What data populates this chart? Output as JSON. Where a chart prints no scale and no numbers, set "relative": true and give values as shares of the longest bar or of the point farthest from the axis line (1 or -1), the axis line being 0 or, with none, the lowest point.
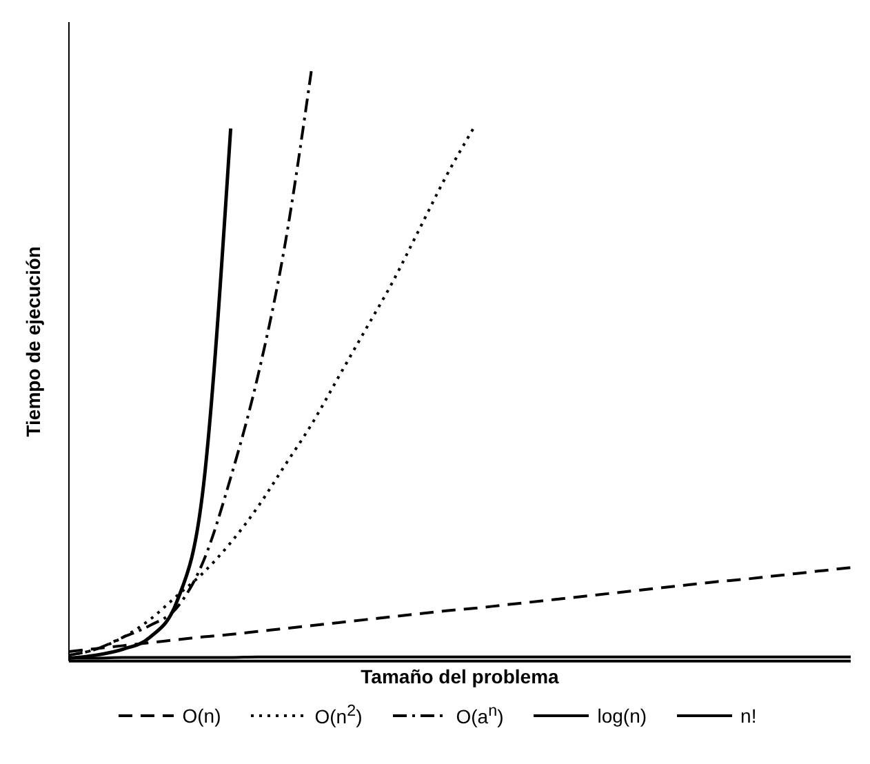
{
  "chart_data": {
    "type": "line",
    "relative": true,
    "xlabel": "Tamaño del problema",
    "ylabel": "Tiempo de ejecución",
    "grid": false,
    "legend": "bottom",
    "marker": "none",
    "categories": [
      null,
      null,
      null,
      null,
      null,
      null,
      null,
      null,
      null,
      null,
      null,
      null,
      null,
      null,
      null,
      null,
      null,
      null,
      null,
      null,
      null,
      null,
      null,
      null,
      null,
      null,
      null,
      null,
      null,
      null
    ],
    "series": [
      {
        "name": "O(n)",
        "color": "#000000",
        "line_style": "dashed",
        "values": [
          0.016,
          0.021,
          0.026,
          0.031,
          0.036,
          0.041,
          0.045,
          0.05,
          0.055,
          0.06,
          0.065,
          0.07,
          0.075,
          0.08,
          0.085,
          0.089,
          0.094,
          0.099,
          0.104,
          0.109,
          0.114,
          0.119,
          0.124,
          0.129,
          0.134,
          0.138,
          0.143,
          0.148,
          0.153,
          0.158
        ]
      },
      {
        "name": "O(n$^{2}$)",
        "color": "#000000",
        "line_style": "dotted",
        "values": [
          0.01,
          0.02,
          0.04,
          0.07,
          0.11,
          0.15,
          0.2,
          0.26,
          0.33,
          0.4,
          0.48,
          0.56,
          0.64,
          0.73,
          0.82,
          0.9,
          null,
          null,
          null,
          null,
          null,
          null,
          null,
          null,
          null,
          null,
          null,
          null,
          null,
          null
        ]
      },
      {
        "name": "O(a$^{n}$)",
        "color": "#000000",
        "line_style": "dashdot",
        "values": [
          0.01,
          0.02,
          0.04,
          0.06,
          0.09,
          0.17,
          0.31,
          0.48,
          0.7,
          1,
          null,
          null,
          null,
          null,
          null,
          null,
          null,
          null,
          null,
          null,
          null,
          null,
          null,
          null,
          null,
          null,
          null,
          null,
          null,
          null
        ]
      },
      {
        "name": "log(n)",
        "color": "#000000",
        "line_style": "solid",
        "values": [
          0.005,
          0.005,
          0.006,
          0.006,
          0.006,
          0.006,
          0.006,
          0.007,
          0.007,
          0.007,
          0.007,
          0.007,
          0.007,
          0.007,
          0.007,
          0.007,
          0.007,
          0.007,
          0.007,
          0.007,
          0.007,
          0.007,
          0.007,
          0.007,
          0.007,
          0.007,
          0.007,
          0.007,
          0.007,
          0.007
        ]
      },
      {
        "name": "n!",
        "color": "#000000",
        "line_style": "solid",
        "values": [
          0.005,
          0.01,
          0.02,
          0.04,
          0.1,
          0.3,
          0.9,
          null,
          null,
          null,
          null,
          null,
          null,
          null,
          null,
          null,
          null,
          null,
          null,
          null,
          null,
          null,
          null,
          null,
          null,
          null,
          null,
          null,
          null,
          null
        ]
      }
    ]
  }
}
